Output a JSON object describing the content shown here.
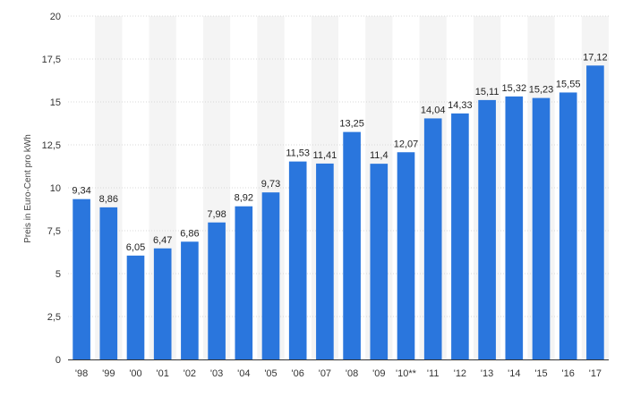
{
  "chart_data": {
    "type": "bar",
    "ylabel": "Preis in Euro-Cent pro kWh",
    "ylim": [
      0,
      20
    ],
    "y_ticks": [
      0,
      2.5,
      5,
      7.5,
      10,
      12.5,
      15,
      17.5,
      20
    ],
    "y_tick_labels": [
      "0",
      "2,5",
      "5",
      "7,5",
      "10",
      "12,5",
      "15",
      "17,5",
      "20"
    ],
    "categories": [
      "'98",
      "'99",
      "'00",
      "'01",
      "'02",
      "'03",
      "'04",
      "'05",
      "'06",
      "'07",
      "'08",
      "'09",
      "'10**",
      "'11",
      "'12",
      "'13",
      "'14",
      "'15",
      "'16",
      "'17"
    ],
    "values": [
      9.34,
      8.86,
      6.05,
      6.47,
      6.86,
      7.98,
      8.92,
      9.73,
      11.53,
      11.41,
      13.25,
      11.4,
      12.07,
      14.04,
      14.33,
      15.11,
      15.32,
      15.23,
      15.55,
      17.12
    ],
    "value_labels": [
      "9,34",
      "8,86",
      "6,05",
      "6,47",
      "6,86",
      "7,98",
      "8,92",
      "9,73",
      "11,53",
      "11,41",
      "13,25",
      "11,4",
      "12,07",
      "14,04",
      "14,33",
      "15,11",
      "15,32",
      "15,23",
      "15,55",
      "17,12"
    ],
    "grid": true,
    "legend": "none",
    "colors": {
      "bar": "#2a76dd",
      "band": "#f4f4f4",
      "grid": "#d9d9d9",
      "axis": "#333333"
    }
  }
}
